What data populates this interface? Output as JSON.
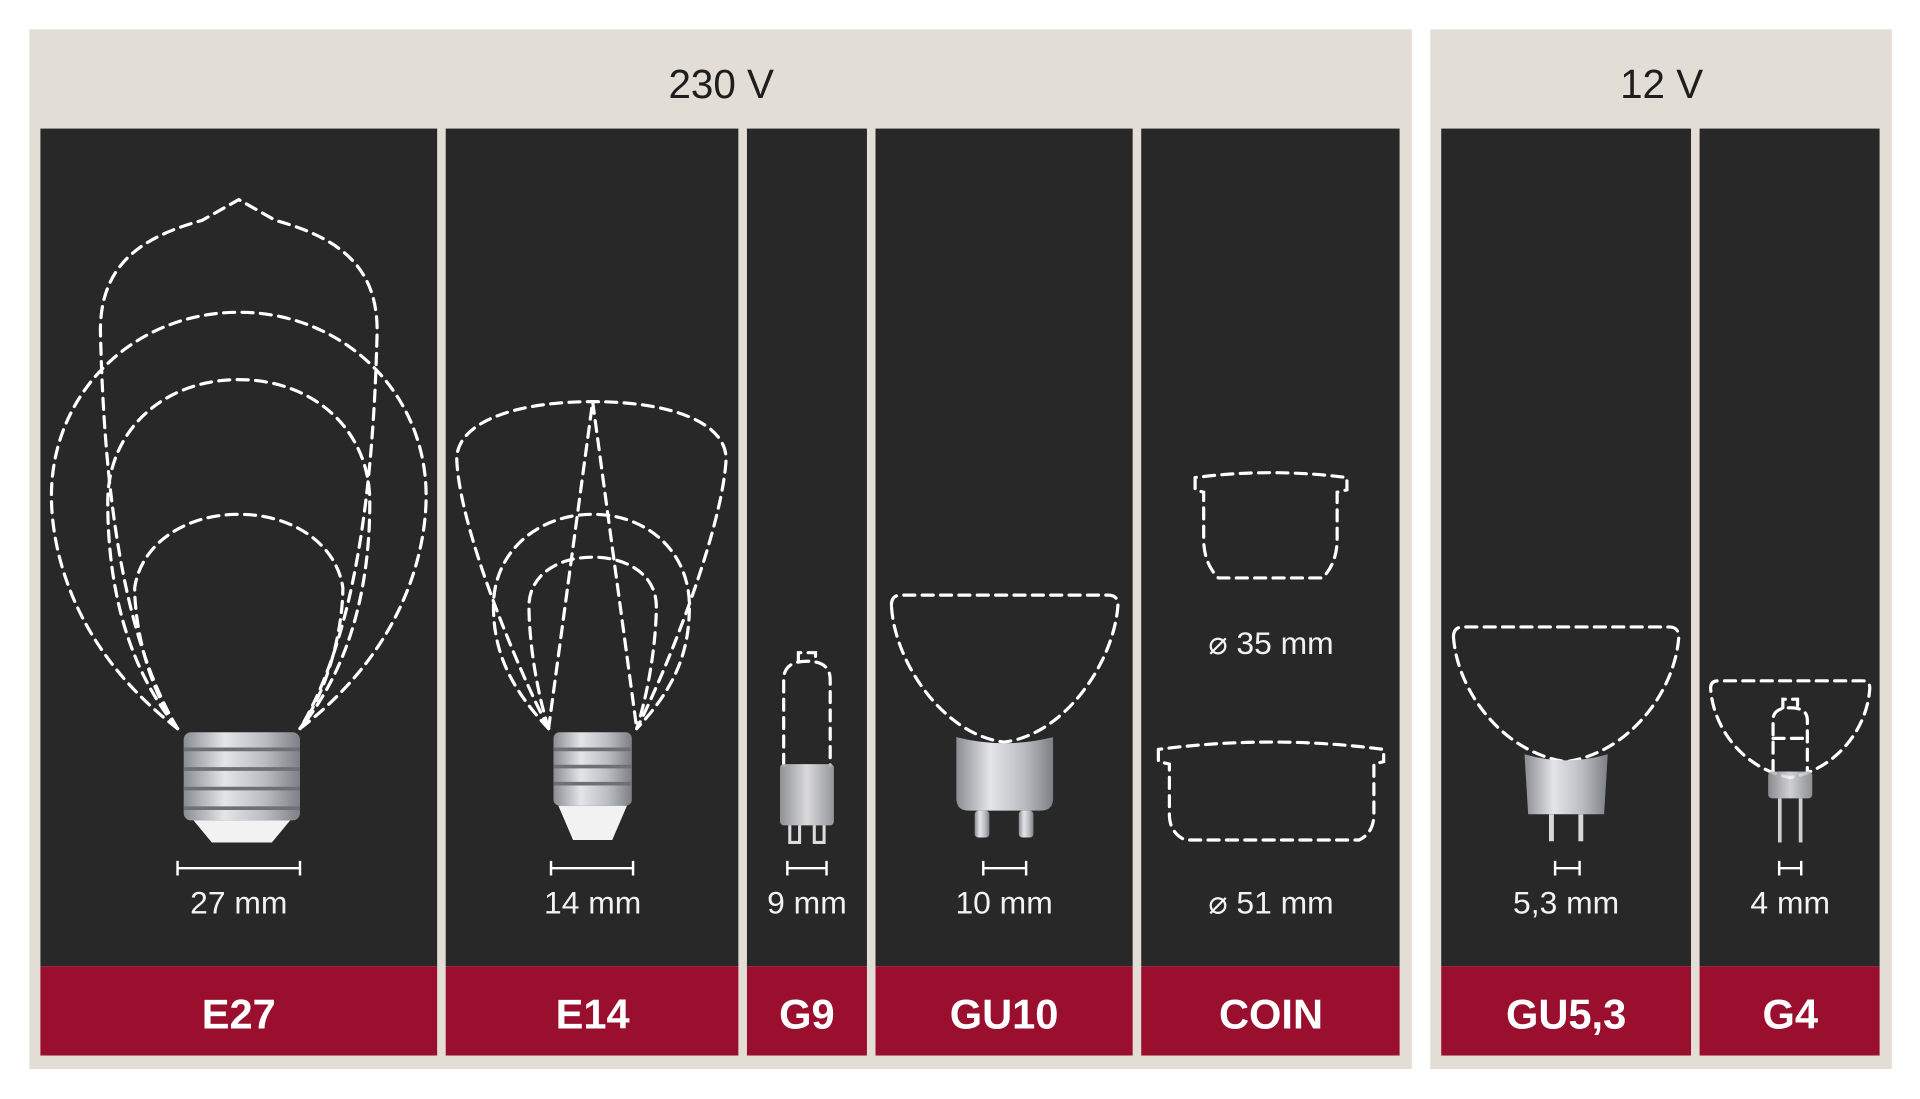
{
  "groups": [
    {
      "voltage": "230 V"
    },
    {
      "voltage": "12 V"
    }
  ],
  "sockets": [
    {
      "name": "E27",
      "measure": "27 mm"
    },
    {
      "name": "E14",
      "measure": "14 mm"
    },
    {
      "name": "G9",
      "measure": "9 mm"
    },
    {
      "name": "GU10",
      "measure": "10 mm"
    },
    {
      "name": "COIN",
      "measure": "⌀ 51 mm",
      "measure_small": "⌀ 35 mm"
    },
    {
      "name": "GU5,3",
      "measure": "5,3 mm"
    },
    {
      "name": "G4",
      "measure": "4 mm"
    }
  ],
  "colors": {
    "panel_background": "#e2ddd5",
    "column_background": "#282828",
    "label_band": "#9a0f2e",
    "outline": "#ffffff"
  }
}
